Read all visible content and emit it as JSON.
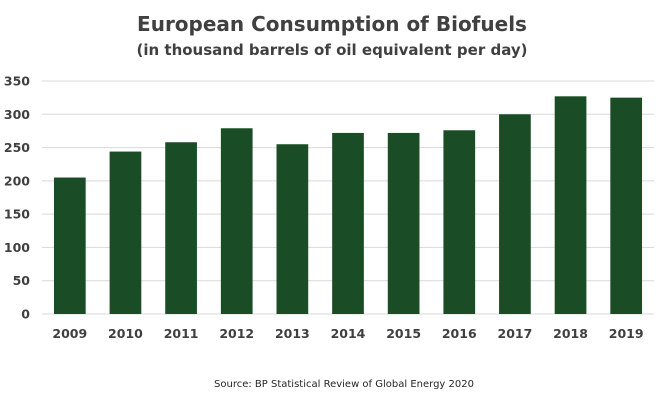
{
  "chart_data": {
    "type": "bar",
    "title": "European Consumption of Biofuels",
    "subtitle": "(in thousand barrels of oil equivalent per day)",
    "xlabel": "",
    "ylabel": "",
    "categories": [
      "2009",
      "2010",
      "2011",
      "2012",
      "2013",
      "2014",
      "2015",
      "2016",
      "2017",
      "2018",
      "2019"
    ],
    "values": [
      205,
      244,
      258,
      279,
      255,
      272,
      272,
      276,
      300,
      327,
      325
    ],
    "ylim": [
      0,
      350
    ],
    "yticks": [
      "0",
      "50",
      "100",
      "150",
      "200",
      "250",
      "300",
      "350"
    ],
    "grid": true,
    "legend": "none",
    "bar_color": "#1a4d25",
    "source": "Source: BP Statistical Review of Global Energy 2020"
  }
}
